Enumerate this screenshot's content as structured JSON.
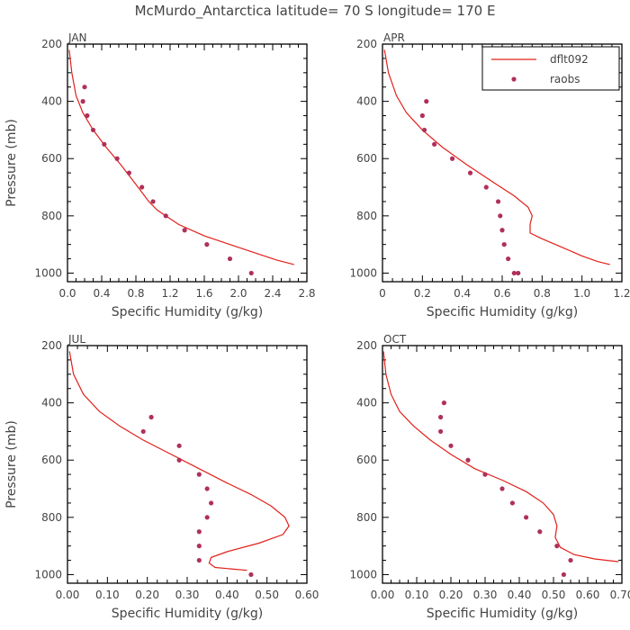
{
  "title": "McMurdo_Antarctica  latitude= 70 S longitude= 170 E",
  "colors": {
    "model": "#e0201a",
    "obs": "#b0305a",
    "axis": "#000000",
    "text": "#444444"
  },
  "legend": {
    "placement": "top-right of APR panel",
    "model_label": "dflt092",
    "obs_label": "raobs"
  },
  "chart_data": [
    {
      "type": "line+scatter",
      "panel": "JAN",
      "xlabel": "Specific Humidity (g/kg)",
      "ylabel": "Pressure (mb)",
      "xlim": [
        0,
        2.8
      ],
      "ylim": [
        200,
        1030
      ],
      "xticks": [
        "0.0",
        "0.4",
        "0.8",
        "1.2",
        "1.6",
        "2.0",
        "2.4",
        "2.8"
      ],
      "xtick_values": [
        0,
        0.4,
        0.8,
        1.2,
        1.6,
        2.0,
        2.4,
        2.8
      ],
      "yticks": [
        "200",
        "400",
        "600",
        "800",
        "1000"
      ],
      "ytick_values": [
        200,
        400,
        600,
        800,
        1000
      ],
      "series": [
        {
          "name": "dflt092",
          "kind": "line",
          "x": [
            0.02,
            0.05,
            0.1,
            0.18,
            0.3,
            0.45,
            0.62,
            0.8,
            0.95,
            1.05,
            1.3,
            1.6,
            1.9,
            2.2,
            2.45,
            2.65
          ],
          "y": [
            220,
            300,
            380,
            440,
            500,
            560,
            620,
            690,
            750,
            780,
            830,
            870,
            900,
            930,
            955,
            970
          ]
        },
        {
          "name": "raobs",
          "kind": "scatter",
          "x": [
            0.2,
            0.18,
            0.23,
            0.3,
            0.43,
            0.58,
            0.72,
            0.87,
            1.0,
            1.15,
            1.37,
            1.63,
            1.9,
            2.15
          ],
          "y": [
            350,
            400,
            450,
            500,
            550,
            600,
            650,
            700,
            750,
            800,
            850,
            900,
            950,
            1000
          ]
        }
      ]
    },
    {
      "type": "line+scatter",
      "panel": "APR",
      "xlabel": "Specific Humidity (g/kg)",
      "ylabel": "",
      "xlim": [
        0,
        1.2
      ],
      "ylim": [
        200,
        1030
      ],
      "xticks": [
        "0",
        "0.2",
        "0.4",
        "0.6",
        "0.8",
        "1.0",
        "1.2"
      ],
      "xtick_values": [
        0,
        0.2,
        0.4,
        0.6,
        0.8,
        1.0,
        1.2
      ],
      "yticks": [
        "200",
        "400",
        "600",
        "800",
        "1000"
      ],
      "ytick_values": [
        200,
        400,
        600,
        800,
        1000
      ],
      "series": [
        {
          "name": "dflt092",
          "kind": "line",
          "x": [
            0.01,
            0.03,
            0.07,
            0.12,
            0.2,
            0.3,
            0.42,
            0.55,
            0.66,
            0.73,
            0.75,
            0.74,
            0.74,
            0.8,
            0.9,
            1.0,
            1.08,
            1.14
          ],
          "y": [
            220,
            300,
            380,
            440,
            500,
            560,
            620,
            680,
            730,
            770,
            800,
            830,
            860,
            880,
            910,
            940,
            960,
            970
          ]
        },
        {
          "name": "raobs",
          "kind": "scatter",
          "x": [
            0.22,
            0.2,
            0.21,
            0.26,
            0.35,
            0.44,
            0.52,
            0.58,
            0.59,
            0.6,
            0.61,
            0.63,
            0.66,
            0.68
          ],
          "y": [
            400,
            450,
            500,
            550,
            600,
            650,
            700,
            750,
            800,
            850,
            900,
            950,
            1000,
            1000
          ]
        }
      ]
    },
    {
      "type": "line+scatter",
      "panel": "JUL",
      "xlabel": "Specific Humidity (g/kg)",
      "ylabel": "Pressure (mb)",
      "xlim": [
        0,
        0.6
      ],
      "ylim": [
        200,
        1030
      ],
      "xticks": [
        "0.00",
        "0.10",
        "0.20",
        "0.30",
        "0.40",
        "0.50",
        "0.60"
      ],
      "xtick_values": [
        0,
        0.1,
        0.2,
        0.3,
        0.4,
        0.5,
        0.6
      ],
      "yticks": [
        "200",
        "400",
        "600",
        "800",
        "1000"
      ],
      "ytick_values": [
        200,
        400,
        600,
        800,
        1000
      ],
      "series": [
        {
          "name": "dflt092",
          "kind": "line",
          "x": [
            0.005,
            0.015,
            0.04,
            0.08,
            0.13,
            0.19,
            0.26,
            0.33,
            0.4,
            0.46,
            0.51,
            0.545,
            0.555,
            0.54,
            0.48,
            0.4,
            0.36,
            0.355,
            0.37,
            0.41,
            0.45
          ],
          "y": [
            220,
            300,
            370,
            430,
            480,
            530,
            580,
            630,
            680,
            720,
            760,
            800,
            830,
            860,
            890,
            920,
            940,
            960,
            975,
            980,
            985
          ]
        },
        {
          "name": "raobs",
          "kind": "scatter",
          "x": [
            0.21,
            0.19,
            0.28,
            0.28,
            0.33,
            0.35,
            0.36,
            0.35,
            0.33,
            0.33,
            0.33,
            0.46
          ],
          "y": [
            450,
            500,
            550,
            600,
            650,
            700,
            750,
            800,
            850,
            900,
            950,
            1000
          ]
        }
      ]
    },
    {
      "type": "line+scatter",
      "panel": "OCT",
      "xlabel": "Specific Humidity (g/kg)",
      "ylabel": "",
      "xlim": [
        0,
        0.7
      ],
      "ylim": [
        200,
        1030
      ],
      "xticks": [
        "0.00",
        "0.10",
        "0.20",
        "0.30",
        "0.40",
        "0.50",
        "0.60",
        "0.70"
      ],
      "xtick_values": [
        0,
        0.1,
        0.2,
        0.3,
        0.4,
        0.5,
        0.6,
        0.7
      ],
      "yticks": [
        "200",
        "400",
        "600",
        "800",
        "1000"
      ],
      "ytick_values": [
        200,
        400,
        600,
        800,
        1000
      ],
      "series": [
        {
          "name": "dflt092",
          "kind": "line",
          "x": [
            0.003,
            0.01,
            0.025,
            0.05,
            0.09,
            0.14,
            0.2,
            0.27,
            0.35,
            0.42,
            0.47,
            0.5,
            0.51,
            0.505,
            0.52,
            0.56,
            0.62,
            0.69
          ],
          "y": [
            220,
            300,
            370,
            430,
            480,
            530,
            580,
            630,
            670,
            710,
            750,
            790,
            830,
            870,
            905,
            930,
            945,
            955
          ]
        },
        {
          "name": "raobs",
          "kind": "scatter",
          "x": [
            0.18,
            0.17,
            0.17,
            0.2,
            0.25,
            0.3,
            0.35,
            0.38,
            0.42,
            0.46,
            0.51,
            0.55,
            0.53
          ],
          "y": [
            400,
            450,
            500,
            550,
            600,
            650,
            700,
            750,
            800,
            850,
            900,
            950,
            1000
          ]
        }
      ]
    }
  ]
}
